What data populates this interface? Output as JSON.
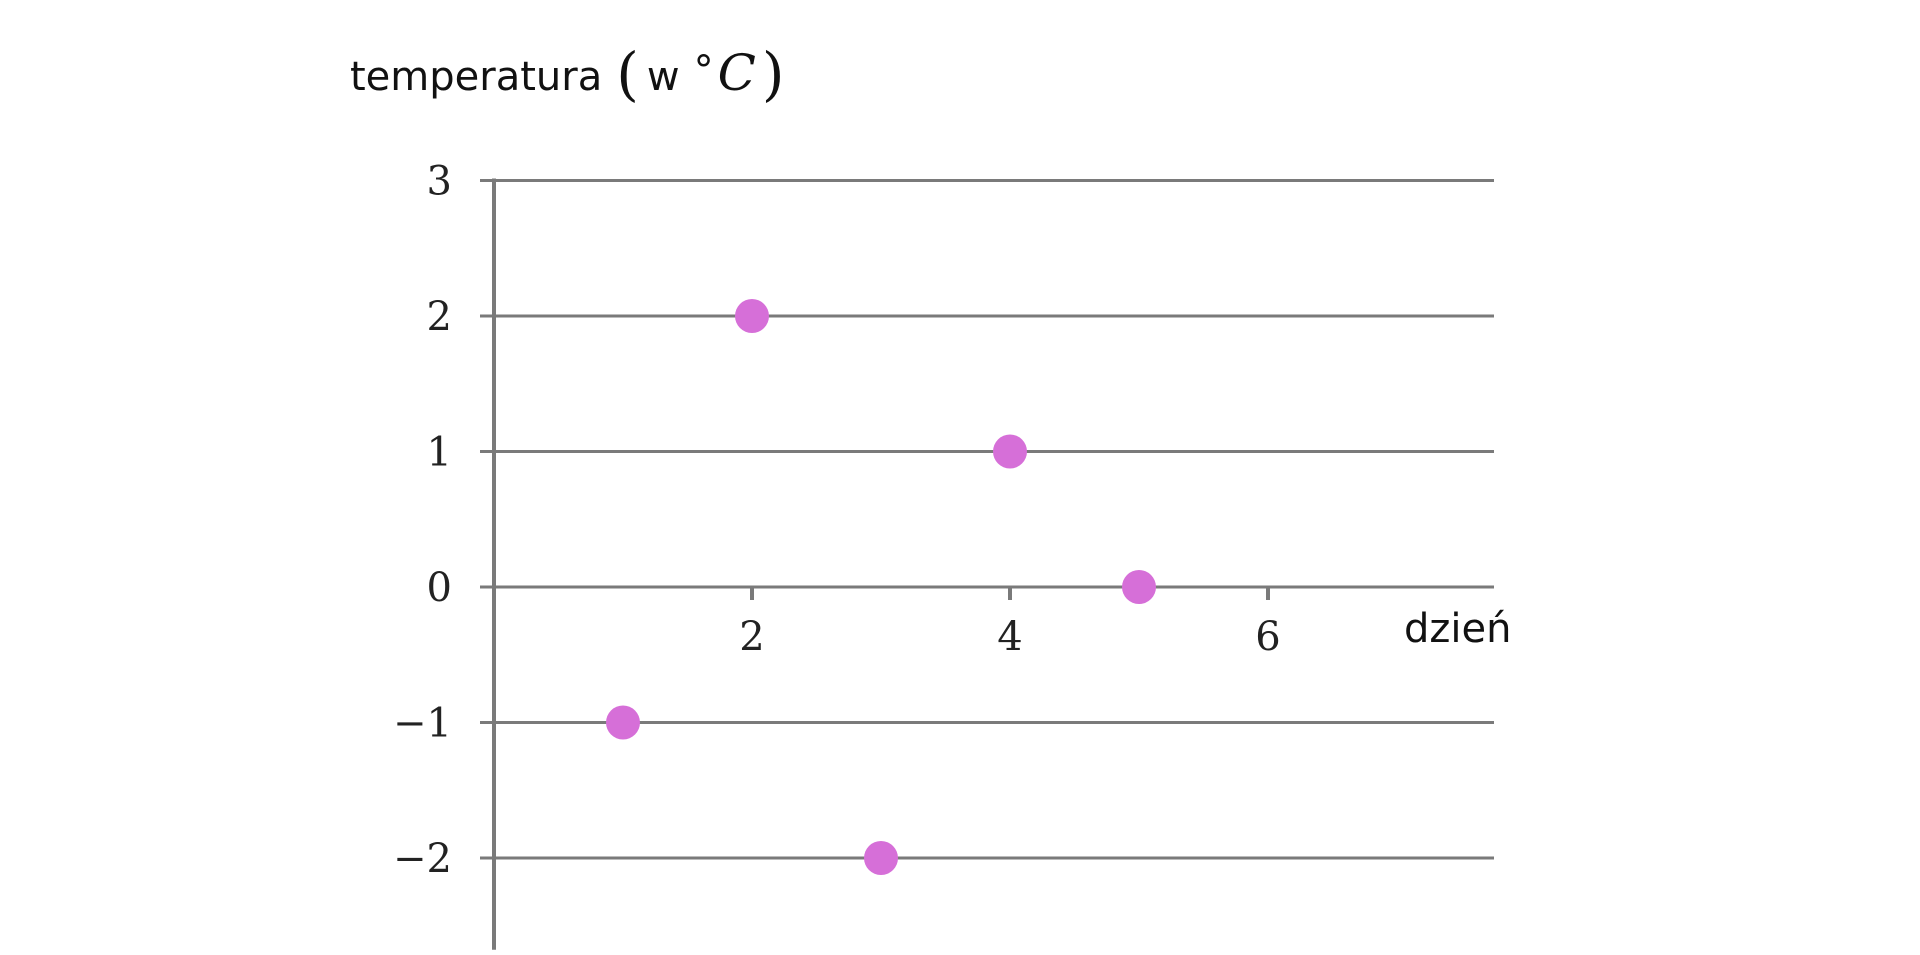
{
  "chart_data": {
    "type": "scatter",
    "ylabel": {
      "text": "temperatura",
      "paren_open": "(",
      "prefix": "w",
      "degree": "°",
      "unit": "C",
      "paren_close": ")"
    },
    "xlabel": "dzień",
    "xlim": [
      0,
      7.7
    ],
    "ylim": [
      -2.5,
      3
    ],
    "x_ticks": [
      2,
      4,
      6
    ],
    "x_tick_labels": [
      "2",
      "4",
      "6"
    ],
    "y_ticks": [
      3,
      2,
      1,
      0,
      -1,
      -2
    ],
    "y_tick_labels": [
      "3",
      "2",
      "1",
      "0",
      "−1",
      "−2"
    ],
    "grid": "horizontal",
    "points": [
      {
        "x": 1,
        "y": -1
      },
      {
        "x": 2,
        "y": 2
      },
      {
        "x": 3,
        "y": -2
      },
      {
        "x": 4,
        "y": 1
      },
      {
        "x": 5,
        "y": 0
      }
    ],
    "colors": {
      "marker": "#d66fd8",
      "axis": "#7a7a7a",
      "grid": "#7a7a7a"
    }
  }
}
